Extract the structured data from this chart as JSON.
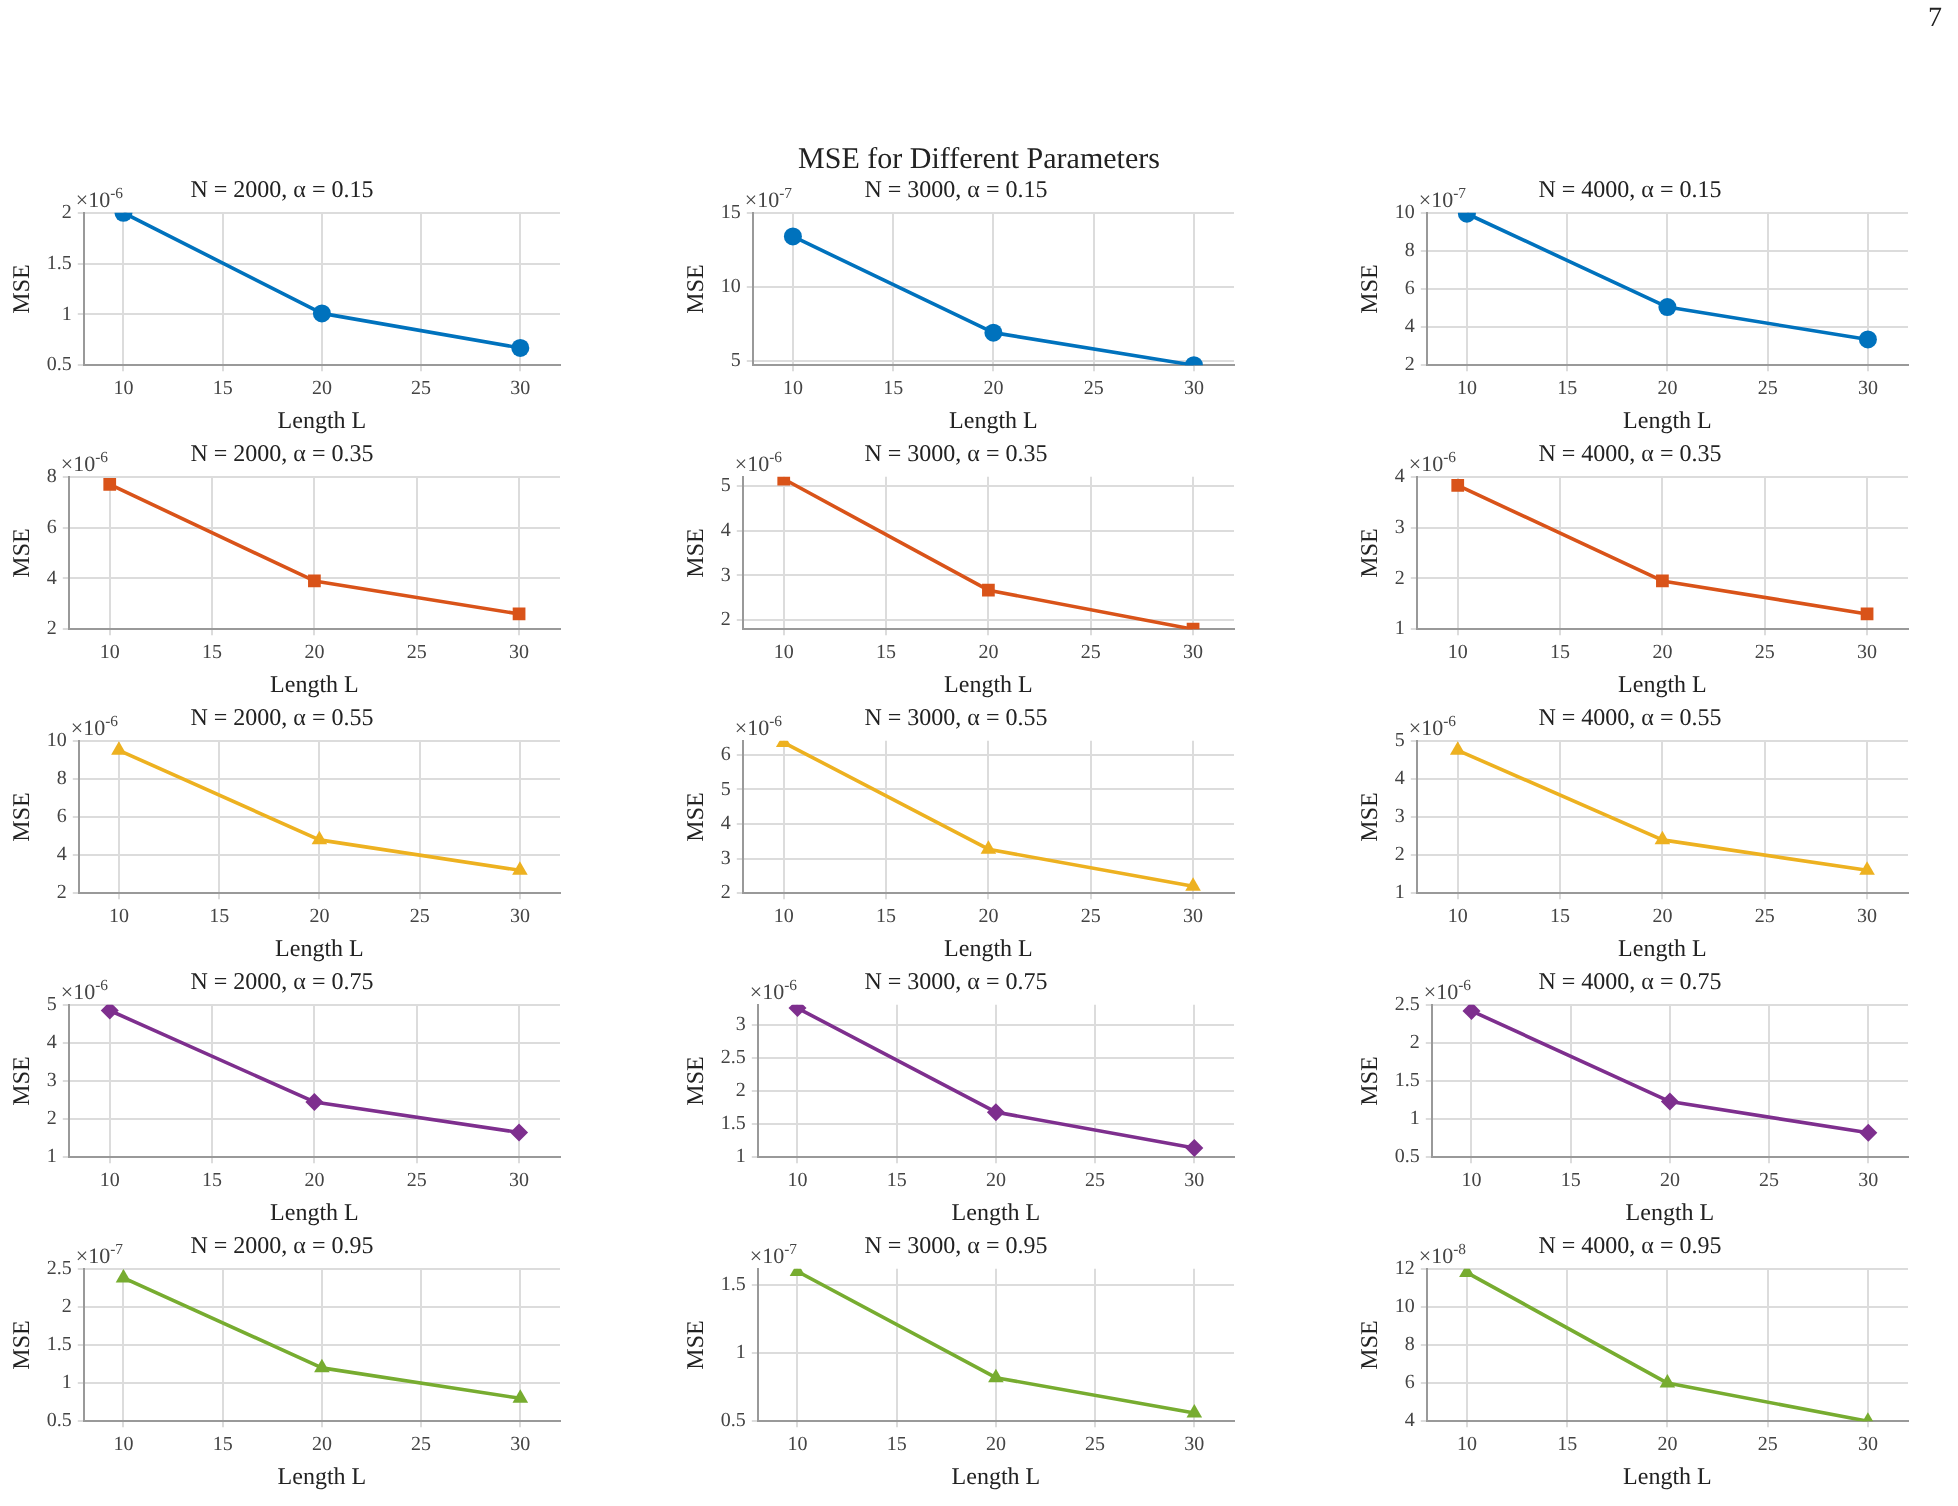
{
  "chart_data": [
    {
      "type": "other",
      "title": "MSE for Different Parameters",
      "annotations": [
        "7"
      ]
    },
    {
      "type": "line",
      "title": "N = 2000, α = 0.15",
      "xlabel": "Length L",
      "ylabel": "MSE",
      "annotations": [
        "×10$^{-6}$"
      ],
      "x": [
        10,
        20,
        30
      ],
      "series": [
        {
          "color": "#0072bd",
          "values": [
            2.0,
            1.01,
            0.67
          ]
        }
      ],
      "xlim": [
        8,
        32
      ],
      "xticks": [
        10,
        15,
        20,
        25,
        30
      ],
      "ylim": [
        0.5,
        2
      ],
      "yticks": [
        0.5,
        1,
        1.5,
        2
      ],
      "grid": true,
      "legend": false,
      "marker": "circle",
      "line_style": "solid"
    },
    {
      "type": "line",
      "title": "N = 3000, α = 0.15",
      "xlabel": "Length L",
      "ylabel": "MSE",
      "annotations": [
        "×10$^{-7}$"
      ],
      "x": [
        10,
        20,
        30
      ],
      "series": [
        {
          "color": "#0072bd",
          "values": [
            13.4,
            6.9,
            4.7
          ]
        }
      ],
      "xlim": [
        8,
        32
      ],
      "xticks": [
        10,
        15,
        20,
        25,
        30
      ],
      "ylim": [
        4.7,
        15
      ],
      "yticks": [
        5,
        10,
        15
      ],
      "grid": true,
      "legend": false,
      "marker": "circle",
      "line_style": "solid"
    },
    {
      "type": "line",
      "title": "N = 4000, α = 0.15",
      "xlabel": "Length L",
      "ylabel": "MSE",
      "annotations": [
        "×10$^{-7}$"
      ],
      "x": [
        10,
        20,
        30
      ],
      "series": [
        {
          "color": "#0072bd",
          "values": [
            9.95,
            5.05,
            3.35
          ]
        }
      ],
      "xlim": [
        8,
        32
      ],
      "xticks": [
        10,
        15,
        20,
        25,
        30
      ],
      "ylim": [
        2,
        10
      ],
      "yticks": [
        2,
        4,
        6,
        8,
        10
      ],
      "grid": true,
      "legend": false,
      "marker": "circle",
      "line_style": "solid"
    },
    {
      "type": "line",
      "title": "N = 2000, α = 0.35",
      "xlabel": "Length L",
      "ylabel": "MSE",
      "annotations": [
        "×10$^{-6}$"
      ],
      "x": [
        10,
        20,
        30
      ],
      "series": [
        {
          "color": "#d95319",
          "values": [
            7.7,
            3.9,
            2.6
          ]
        }
      ],
      "xlim": [
        8,
        32
      ],
      "xticks": [
        10,
        15,
        20,
        25,
        30
      ],
      "ylim": [
        2,
        8
      ],
      "yticks": [
        2,
        4,
        6,
        8
      ],
      "grid": true,
      "legend": false,
      "marker": "square",
      "line_style": "solid"
    },
    {
      "type": "line",
      "title": "N = 3000, α = 0.35",
      "xlabel": "Length L",
      "ylabel": "MSE",
      "annotations": [
        "×10$^{-6}$"
      ],
      "x": [
        10,
        20,
        30
      ],
      "series": [
        {
          "color": "#d95319",
          "values": [
            5.15,
            2.67,
            1.8
          ]
        }
      ],
      "xlim": [
        8,
        32
      ],
      "xticks": [
        10,
        15,
        20,
        25,
        30
      ],
      "ylim": [
        1.8,
        5.2
      ],
      "yticks": [
        2,
        3,
        4,
        5
      ],
      "grid": true,
      "legend": false,
      "marker": "square",
      "line_style": "solid"
    },
    {
      "type": "line",
      "title": "N = 4000, α = 0.35",
      "xlabel": "Length L",
      "ylabel": "MSE",
      "annotations": [
        "×10$^{-6}$"
      ],
      "x": [
        10,
        20,
        30
      ],
      "series": [
        {
          "color": "#d95319",
          "values": [
            3.83,
            1.95,
            1.3
          ]
        }
      ],
      "xlim": [
        8,
        32
      ],
      "xticks": [
        10,
        15,
        20,
        25,
        30
      ],
      "ylim": [
        1,
        4
      ],
      "yticks": [
        1,
        2,
        3,
        4
      ],
      "grid": true,
      "legend": false,
      "marker": "square",
      "line_style": "solid"
    },
    {
      "type": "line",
      "title": "N = 2000, α = 0.55",
      "xlabel": "Length L",
      "ylabel": "MSE",
      "annotations": [
        "×10$^{-6}$"
      ],
      "x": [
        10,
        20,
        30
      ],
      "series": [
        {
          "color": "#edb120",
          "values": [
            9.5,
            4.8,
            3.2
          ]
        }
      ],
      "xlim": [
        8,
        32
      ],
      "xticks": [
        10,
        15,
        20,
        25,
        30
      ],
      "ylim": [
        2,
        10
      ],
      "yticks": [
        2,
        4,
        6,
        8,
        10
      ],
      "grid": true,
      "legend": false,
      "marker": "triangle",
      "line_style": "solid"
    },
    {
      "type": "line",
      "title": "N = 3000, α = 0.55",
      "xlabel": "Length L",
      "ylabel": "MSE",
      "annotations": [
        "×10$^{-6}$"
      ],
      "x": [
        10,
        20,
        30
      ],
      "series": [
        {
          "color": "#edb120",
          "values": [
            6.35,
            3.27,
            2.2
          ]
        }
      ],
      "xlim": [
        8,
        32
      ],
      "xticks": [
        10,
        15,
        20,
        25,
        30
      ],
      "ylim": [
        2,
        6.4
      ],
      "yticks": [
        2,
        3,
        4,
        5,
        6
      ],
      "grid": true,
      "legend": false,
      "marker": "triangle",
      "line_style": "solid"
    },
    {
      "type": "line",
      "title": "N = 4000, α = 0.55",
      "xlabel": "Length L",
      "ylabel": "MSE",
      "annotations": [
        "×10$^{-6}$"
      ],
      "x": [
        10,
        20,
        30
      ],
      "series": [
        {
          "color": "#edb120",
          "values": [
            4.75,
            2.4,
            1.6
          ]
        }
      ],
      "xlim": [
        8,
        32
      ],
      "xticks": [
        10,
        15,
        20,
        25,
        30
      ],
      "ylim": [
        1,
        5
      ],
      "yticks": [
        1,
        2,
        3,
        4,
        5
      ],
      "grid": true,
      "legend": false,
      "marker": "triangle",
      "line_style": "solid"
    },
    {
      "type": "line",
      "title": "N = 2000, α = 0.75",
      "xlabel": "Length L",
      "ylabel": "MSE",
      "annotations": [
        "×10$^{-6}$"
      ],
      "x": [
        10,
        20,
        30
      ],
      "series": [
        {
          "color": "#7e2f8e",
          "values": [
            4.85,
            2.45,
            1.65
          ]
        }
      ],
      "xlim": [
        8,
        32
      ],
      "xticks": [
        10,
        15,
        20,
        25,
        30
      ],
      "ylim": [
        1,
        5
      ],
      "yticks": [
        1,
        2,
        3,
        4,
        5
      ],
      "grid": true,
      "legend": false,
      "marker": "diamond",
      "line_style": "solid"
    },
    {
      "type": "line",
      "title": "N = 3000, α = 0.75",
      "xlabel": "Length L",
      "ylabel": "MSE",
      "annotations": [
        "×10$^{-6}$"
      ],
      "x": [
        10,
        20,
        30
      ],
      "series": [
        {
          "color": "#7e2f8e",
          "values": [
            3.25,
            1.68,
            1.14
          ]
        }
      ],
      "xlim": [
        8,
        32
      ],
      "xticks": [
        10,
        15,
        20,
        25,
        30
      ],
      "ylim": [
        1,
        3.3
      ],
      "yticks": [
        1,
        1.5,
        2,
        2.5,
        3
      ],
      "grid": true,
      "legend": false,
      "marker": "diamond",
      "line_style": "solid"
    },
    {
      "type": "line",
      "title": "N = 4000, α = 0.75",
      "xlabel": "Length L",
      "ylabel": "MSE",
      "annotations": [
        "×10$^{-6}$"
      ],
      "x": [
        10,
        20,
        30
      ],
      "series": [
        {
          "color": "#7e2f8e",
          "values": [
            2.42,
            1.23,
            0.82
          ]
        }
      ],
      "xlim": [
        8,
        32
      ],
      "xticks": [
        10,
        15,
        20,
        25,
        30
      ],
      "ylim": [
        0.5,
        2.5
      ],
      "yticks": [
        0.5,
        1,
        1.5,
        2,
        2.5
      ],
      "grid": true,
      "legend": false,
      "marker": "diamond",
      "line_style": "solid"
    },
    {
      "type": "line",
      "title": "N = 2000, α = 0.95",
      "xlabel": "Length L",
      "ylabel": "MSE",
      "annotations": [
        "×10$^{-7}$"
      ],
      "x": [
        10,
        20,
        30
      ],
      "series": [
        {
          "color": "#77ac30",
          "values": [
            2.38,
            1.2,
            0.8
          ]
        }
      ],
      "xlim": [
        8,
        32
      ],
      "xticks": [
        10,
        15,
        20,
        25,
        30
      ],
      "ylim": [
        0.5,
        2.5
      ],
      "yticks": [
        0.5,
        1,
        1.5,
        2,
        2.5
      ],
      "grid": true,
      "legend": false,
      "marker": "triangle",
      "line_style": "solid"
    },
    {
      "type": "line",
      "title": "N = 3000, α = 0.95",
      "xlabel": "Length L",
      "ylabel": "MSE",
      "annotations": [
        "×10$^{-7}$"
      ],
      "x": [
        10,
        20,
        30
      ],
      "series": [
        {
          "color": "#77ac30",
          "values": [
            1.6,
            0.82,
            0.56
          ]
        }
      ],
      "xlim": [
        8,
        32
      ],
      "xticks": [
        10,
        15,
        20,
        25,
        30
      ],
      "ylim": [
        0.5,
        1.62
      ],
      "yticks": [
        0.5,
        1,
        1.5
      ],
      "grid": true,
      "legend": false,
      "marker": "triangle",
      "line_style": "solid"
    },
    {
      "type": "line",
      "title": "N = 4000, α = 0.95",
      "xlabel": "Length L",
      "ylabel": "MSE",
      "annotations": [
        "×10$^{-8}$"
      ],
      "x": [
        10,
        20,
        30
      ],
      "series": [
        {
          "color": "#77ac30",
          "values": [
            11.8,
            6.0,
            4.0
          ]
        }
      ],
      "xlim": [
        8,
        32
      ],
      "xticks": [
        10,
        15,
        20,
        25,
        30
      ],
      "ylim": [
        4,
        12
      ],
      "yticks": [
        4,
        6,
        8,
        10,
        12
      ],
      "grid": true,
      "legend": false,
      "marker": "triangle",
      "line_style": "solid"
    }
  ]
}
